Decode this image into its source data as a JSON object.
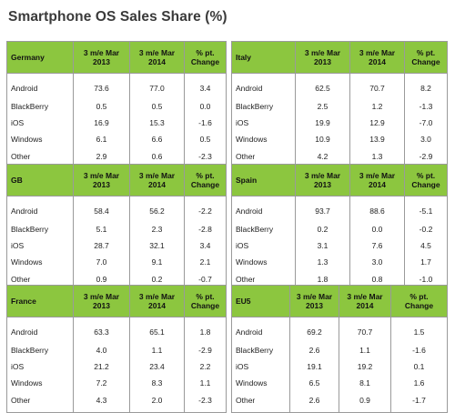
{
  "title": "Smartphone OS Sales Share (%)",
  "header": {
    "col1": [
      "3 m/e Mar",
      "2013"
    ],
    "col2": [
      "3 m/e Mar",
      "2014"
    ],
    "col3": [
      "% pt.",
      "Change"
    ]
  },
  "tables": [
    {
      "region": "Germany",
      "rows": [
        {
          "os": "Android",
          "y2013": "73.6",
          "y2014": "77.0",
          "change": "3.4"
        },
        {
          "os": "BlackBerry",
          "y2013": "0.5",
          "y2014": "0.5",
          "change": "0.0"
        },
        {
          "os": "iOS",
          "y2013": "16.9",
          "y2014": "15.3",
          "change": "-1.6"
        },
        {
          "os": "Windows",
          "y2013": "6.1",
          "y2014": "6.6",
          "change": "0.5"
        },
        {
          "os": "Other",
          "y2013": "2.9",
          "y2014": "0.6",
          "change": "-2.3"
        }
      ]
    },
    {
      "region": "Italy",
      "rows": [
        {
          "os": "Android",
          "y2013": "62.5",
          "y2014": "70.7",
          "change": "8.2"
        },
        {
          "os": "BlackBerry",
          "y2013": "2.5",
          "y2014": "1.2",
          "change": "-1.3"
        },
        {
          "os": "iOS",
          "y2013": "19.9",
          "y2014": "12.9",
          "change": "-7.0"
        },
        {
          "os": "Windows",
          "y2013": "10.9",
          "y2014": "13.9",
          "change": "3.0"
        },
        {
          "os": "Other",
          "y2013": "4.2",
          "y2014": "1.3",
          "change": "-2.9"
        }
      ]
    },
    {
      "region": "GB",
      "rows": [
        {
          "os": "Android",
          "y2013": "58.4",
          "y2014": "56.2",
          "change": "-2.2"
        },
        {
          "os": "BlackBerry",
          "y2013": "5.1",
          "y2014": "2.3",
          "change": "-2.8"
        },
        {
          "os": "iOS",
          "y2013": "28.7",
          "y2014": "32.1",
          "change": "3.4"
        },
        {
          "os": "Windows",
          "y2013": "7.0",
          "y2014": "9.1",
          "change": "2.1"
        },
        {
          "os": "Other",
          "y2013": "0.9",
          "y2014": "0.2",
          "change": "-0.7"
        }
      ]
    },
    {
      "region": "Spain",
      "rows": [
        {
          "os": "Android",
          "y2013": "93.7",
          "y2014": "88.6",
          "change": "-5.1"
        },
        {
          "os": "BlackBerry",
          "y2013": "0.2",
          "y2014": "0.0",
          "change": "-0.2"
        },
        {
          "os": "iOS",
          "y2013": "3.1",
          "y2014": "7.6",
          "change": "4.5"
        },
        {
          "os": "Windows",
          "y2013": "1.3",
          "y2014": "3.0",
          "change": "1.7"
        },
        {
          "os": "Other",
          "y2013": "1.8",
          "y2014": "0.8",
          "change": "-1.0"
        }
      ]
    },
    {
      "region": "France",
      "rows": [
        {
          "os": "Android",
          "y2013": "63.3",
          "y2014": "65.1",
          "change": "1.8"
        },
        {
          "os": "BlackBerry",
          "y2013": "4.0",
          "y2014": "1.1",
          "change": "-2.9"
        },
        {
          "os": "iOS",
          "y2013": "21.2",
          "y2014": "23.4",
          "change": "2.2"
        },
        {
          "os": "Windows",
          "y2013": "7.2",
          "y2014": "8.3",
          "change": "1.1"
        },
        {
          "os": "Other",
          "y2013": "4.3",
          "y2014": "2.0",
          "change": "-2.3"
        }
      ]
    },
    {
      "region": "EU5",
      "rows": [
        {
          "os": "Android",
          "y2013": "69.2",
          "y2014": "70.7",
          "change": "1.5"
        },
        {
          "os": "BlackBerry",
          "y2013": "2.6",
          "y2014": "1.1",
          "change": "-1.6"
        },
        {
          "os": "iOS",
          "y2013": "19.1",
          "y2014": "19.2",
          "change": "0.1"
        },
        {
          "os": "Windows",
          "y2013": "6.5",
          "y2014": "8.1",
          "change": "1.6"
        },
        {
          "os": "Other",
          "y2013": "2.6",
          "y2014": "0.9",
          "change": "-1.7"
        }
      ]
    }
  ]
}
